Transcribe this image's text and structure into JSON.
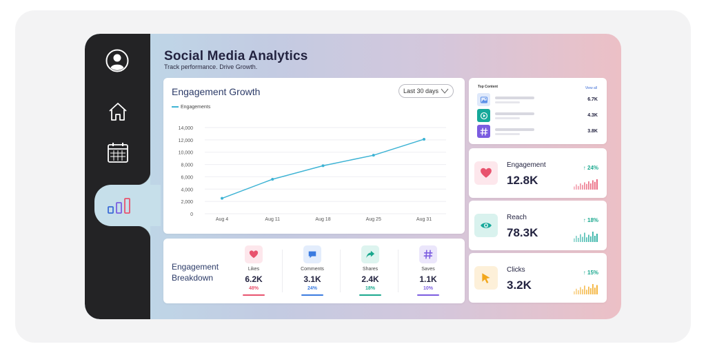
{
  "header": {
    "title": "Social Media Analytics",
    "subtitle": "Track performance. Drive Growth."
  },
  "sidebar": {
    "items": [
      {
        "icon": "user-avatar-icon",
        "active": false
      },
      {
        "icon": "home-icon",
        "active": false
      },
      {
        "icon": "calendar-icon",
        "active": false
      },
      {
        "icon": "bar-chart-icon",
        "active": true
      }
    ]
  },
  "engagement_growth": {
    "title": "Engagement Growth",
    "range_label": "Last 30 days",
    "chart_data": {
      "type": "line",
      "categories": [
        "Aug 4",
        "Aug 11",
        "Aug 18",
        "Aug 25",
        "Aug 31"
      ],
      "series": [
        {
          "name": "Engagements",
          "values": [
            2500,
            5600,
            7800,
            9500,
            12100
          ],
          "color": "#3db3d4"
        }
      ],
      "yticks": [
        "0",
        "2,000",
        "4,000",
        "6,000",
        "8,000",
        "10,000",
        "12,000",
        "14,000"
      ],
      "ylim": [
        0,
        14000
      ],
      "grid": true,
      "legend_position": "top-left"
    }
  },
  "breakdown": {
    "title_line1": "Engagement",
    "title_line2": "Breakdown",
    "metrics": [
      {
        "icon": "heart-icon",
        "label": "Likes",
        "value": "6.2K",
        "pct": "48%",
        "color": "#e8536e",
        "bg": "#fde7ec"
      },
      {
        "icon": "comment-icon",
        "label": "Comments",
        "value": "3.1K",
        "pct": "24%",
        "color": "#3a7be0",
        "bg": "#e3edfc"
      },
      {
        "icon": "share-icon",
        "label": "Shares",
        "value": "2.4K",
        "pct": "18%",
        "color": "#1aa88e",
        "bg": "#ddf4ef"
      },
      {
        "icon": "hashtag-icon",
        "label": "Saves",
        "value": "1.1K",
        "pct": "10%",
        "color": "#7b5ce0",
        "bg": "#ebe6fb"
      }
    ]
  },
  "top_content": {
    "title": "Top Content",
    "view_all": "View all",
    "items": [
      {
        "icon": "image-icon",
        "value": "6.7K",
        "color": "#5a8ee8",
        "bg": "#dfe9fb"
      },
      {
        "icon": "play-icon",
        "value": "4.3K",
        "color": "#ffffff",
        "bg": "#16a89a"
      },
      {
        "icon": "hashtag-icon",
        "value": "3.8K",
        "color": "#ffffff",
        "bg": "#7b5ce0"
      }
    ]
  },
  "stats": [
    {
      "icon": "heart-icon",
      "label": "Engagement",
      "value": "12.8K",
      "pct": "24%",
      "color": "#e8536e",
      "bg": "#fde7ec",
      "spark": [
        0.3,
        0.5,
        0.35,
        0.6,
        0.45,
        0.7,
        0.55,
        0.8,
        0.6,
        0.9,
        0.75,
        1.0
      ]
    },
    {
      "icon": "eye-icon",
      "label": "Reach",
      "value": "78.3K",
      "pct": "18%",
      "color": "#16a89a",
      "bg": "#d9f2ee",
      "spark": [
        0.35,
        0.6,
        0.4,
        0.75,
        0.5,
        0.9,
        0.45,
        0.7,
        0.55,
        1.0,
        0.6,
        0.8
      ]
    },
    {
      "icon": "cursor-icon",
      "label": "Clicks",
      "value": "3.2K",
      "pct": "15%",
      "color": "#f2a71b",
      "bg": "#fdf0d9",
      "spark": [
        0.3,
        0.55,
        0.4,
        0.7,
        0.5,
        0.85,
        0.45,
        0.75,
        0.6,
        1.0,
        0.65,
        0.9
      ]
    }
  ],
  "colors": {
    "accent": "#3db3d4",
    "sidebar": "#232325",
    "positive": "#1aa88e"
  }
}
